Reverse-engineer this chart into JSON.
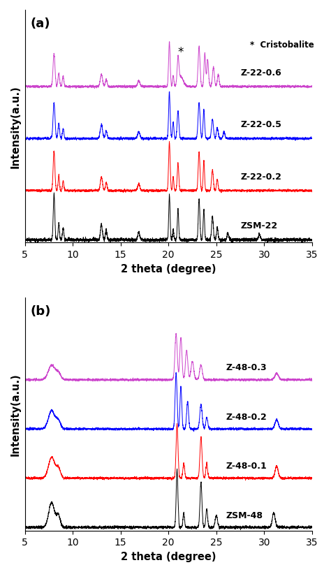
{
  "panel_a_label": "(a)",
  "panel_b_label": "(b)",
  "xlabel": "2 theta (degree)",
  "ylabel": "Intensity(a.u.)",
  "xmin": 5,
  "xmax": 35,
  "colors_a": [
    "black",
    "red",
    "blue",
    "#cc44cc"
  ],
  "labels_a": [
    "ZSM-22",
    "Z-22-0.2",
    "Z-22-0.5",
    "Z-22-0.6"
  ],
  "offsets_a": [
    0.0,
    0.9,
    1.85,
    2.8
  ],
  "colors_b": [
    "black",
    "red",
    "blue",
    "#cc44cc"
  ],
  "labels_b": [
    "ZSM-48",
    "Z-48-0.1",
    "Z-48-0.2",
    "Z-48-0.3"
  ],
  "offsets_b": [
    0.0,
    0.75,
    1.5,
    2.25
  ],
  "noise_amp_a": [
    0.018,
    0.012,
    0.012,
    0.012
  ],
  "noise_amp_b": [
    0.012,
    0.01,
    0.01,
    0.01
  ]
}
